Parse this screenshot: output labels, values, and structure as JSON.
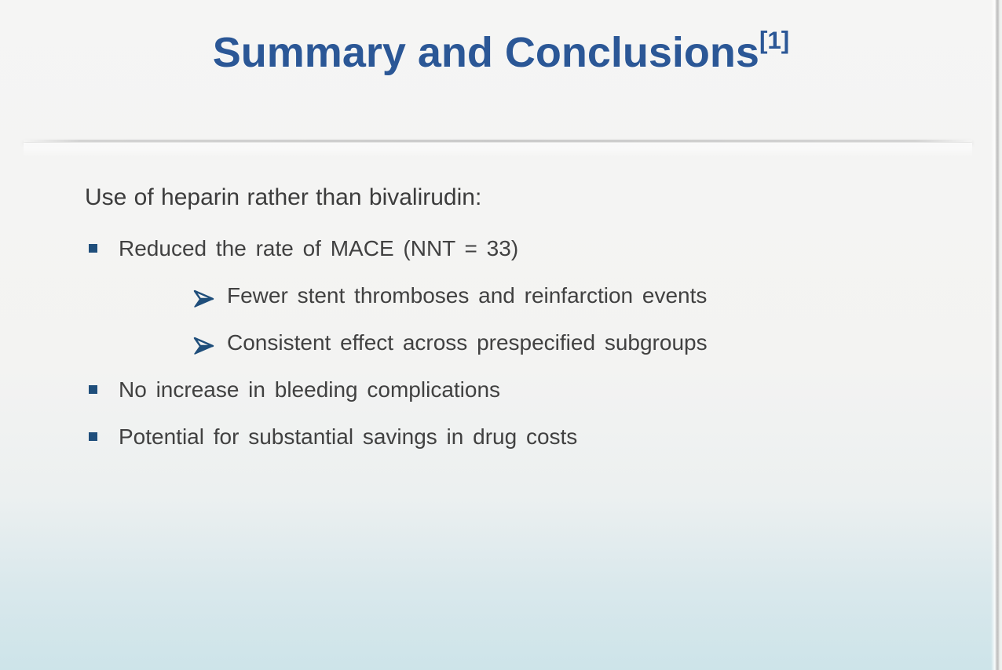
{
  "slide": {
    "title": {
      "text": "Summary and Conclusions",
      "superscript": "[1]"
    },
    "intro": "Use of heparin rather than bivalirudin:",
    "bullets": [
      {
        "level": 1,
        "marker": "square-bullet-icon",
        "text": "Reduced the rate of MACE (NNT = 33)"
      },
      {
        "level": 2,
        "marker": "arrow-bullet-icon",
        "text": "Fewer stent thromboses and reinfarction events"
      },
      {
        "level": 2,
        "marker": "arrow-bullet-icon",
        "text": "Consistent effect across prespecified subgroups"
      },
      {
        "level": 1,
        "marker": "square-bullet-icon",
        "text": "No increase in bleeding complications"
      },
      {
        "level": 1,
        "marker": "square-bullet-icon",
        "text": "Potential for substantial savings in drug costs"
      }
    ],
    "colors": {
      "title_blue": "#2b5796",
      "body_text": "#3f3f3f",
      "bullet_marker_navy": "#1f4e7b",
      "background_top": "#f5f5f4",
      "background_bottom": "#cde4e9"
    }
  }
}
